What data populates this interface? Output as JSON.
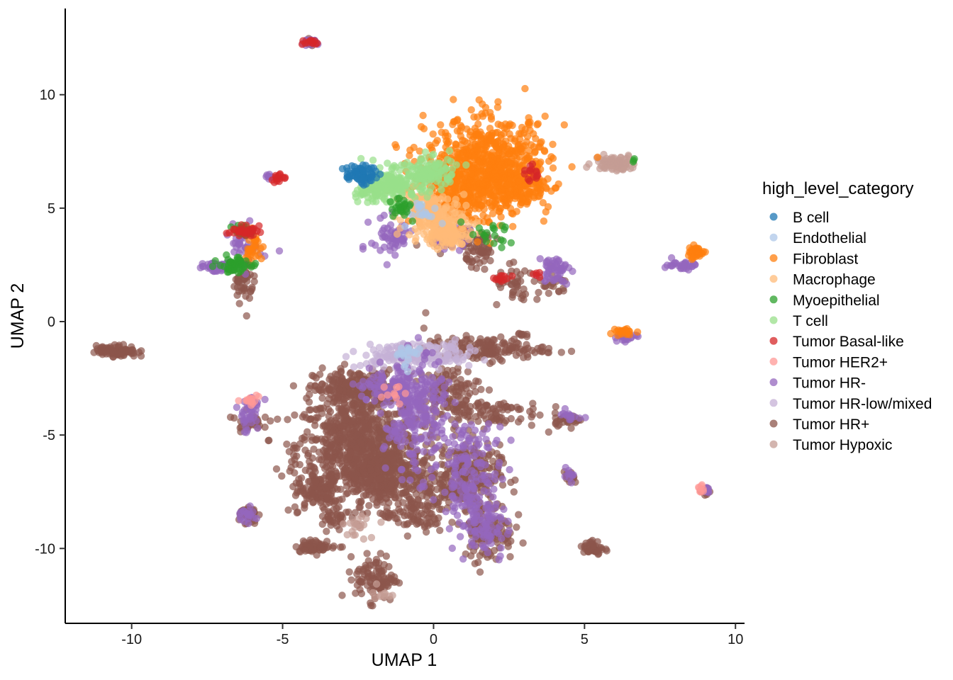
{
  "chart_data": {
    "type": "scatter",
    "xlabel": "UMAP 1",
    "ylabel": "UMAP 2",
    "xlim": [
      -12.2,
      10.3
    ],
    "ylim": [
      -13.3,
      13.8
    ],
    "x_ticks": [
      -10,
      -5,
      0,
      5,
      10
    ],
    "y_ticks": [
      -10,
      -5,
      0,
      5,
      10
    ],
    "x_tick_labels": [
      "-10",
      "-5",
      "0",
      "5",
      "10"
    ],
    "y_tick_labels": [
      "-10",
      "-5",
      "0",
      "5",
      "10"
    ],
    "grid": false,
    "legend": {
      "title": "high_level_category",
      "placement": "right"
    },
    "series": [
      {
        "name": "B cell",
        "color": "#1f77b4",
        "clusters": [
          [
            -2.4,
            6.5,
            0.3,
            0.25,
            60
          ]
        ]
      },
      {
        "name": "Endothelial",
        "color": "#aec7e8",
        "clusters": [
          [
            -0.5,
            4.9,
            0.4,
            0.3,
            20
          ],
          [
            -0.8,
            -1.5,
            0.4,
            0.3,
            20
          ]
        ]
      },
      {
        "name": "Fibroblast",
        "color": "#ff7f0e",
        "clusters": [
          [
            1.8,
            6.9,
            1.2,
            1.2,
            650
          ],
          [
            0.8,
            5.6,
            0.9,
            0.8,
            220
          ],
          [
            2.8,
            6.0,
            0.6,
            0.5,
            150
          ],
          [
            8.7,
            3.05,
            0.2,
            0.15,
            40
          ],
          [
            -6.0,
            3.3,
            0.2,
            0.4,
            30
          ],
          [
            6.4,
            -0.45,
            0.2,
            0.1,
            20
          ]
        ]
      },
      {
        "name": "Macrophage",
        "color": "#ffbb78",
        "clusters": [
          [
            0.1,
            4.4,
            0.6,
            0.5,
            150
          ],
          [
            -0.4,
            5.2,
            0.5,
            0.4,
            80
          ],
          [
            0.5,
            3.7,
            0.4,
            0.3,
            50
          ]
        ]
      },
      {
        "name": "Myoepithelial",
        "color": "#2ca02c",
        "clusters": [
          [
            -6.6,
            2.5,
            0.3,
            0.2,
            60
          ],
          [
            -6.3,
            4.0,
            0.2,
            0.15,
            20
          ],
          [
            -1.1,
            5.0,
            0.3,
            0.3,
            25
          ],
          [
            1.8,
            3.8,
            0.5,
            0.3,
            20
          ],
          [
            6.6,
            7.1,
            0.05,
            0.05,
            3
          ]
        ]
      },
      {
        "name": "T cell",
        "color": "#98df8a",
        "clusters": [
          [
            -1.2,
            6.1,
            0.6,
            0.4,
            180
          ],
          [
            -0.1,
            6.6,
            0.5,
            0.4,
            90
          ],
          [
            -2.0,
            5.7,
            0.4,
            0.3,
            50
          ]
        ]
      },
      {
        "name": "Tumor Basal-like",
        "color": "#d62728",
        "clusters": [
          [
            -6.3,
            4.0,
            0.3,
            0.12,
            35
          ],
          [
            -5.2,
            6.3,
            0.15,
            0.12,
            15
          ],
          [
            3.3,
            6.6,
            0.15,
            0.3,
            15
          ],
          [
            -4.1,
            12.3,
            0.15,
            0.08,
            12
          ],
          [
            2.3,
            1.9,
            0.2,
            0.15,
            12
          ],
          [
            3.5,
            2.1,
            0.1,
            0.1,
            5
          ]
        ]
      },
      {
        "name": "Tumor HER2+",
        "color": "#ff9896",
        "clusters": [
          [
            -6.0,
            -3.4,
            0.2,
            0.15,
            15
          ],
          [
            8.9,
            -7.4,
            0.1,
            0.1,
            8
          ],
          [
            -1.5,
            -3.0,
            0.3,
            0.3,
            10
          ]
        ]
      },
      {
        "name": "Tumor HR-",
        "color": "#9467bd",
        "clusters": [
          [
            -7.1,
            2.4,
            0.4,
            0.12,
            70
          ],
          [
            -6.2,
            3.5,
            0.3,
            0.5,
            40
          ],
          [
            -1.4,
            3.7,
            0.4,
            0.5,
            60
          ],
          [
            -0.6,
            -4.2,
            0.6,
            1.5,
            220
          ],
          [
            1.3,
            -7.0,
            0.6,
            1.5,
            180
          ],
          [
            -1.2,
            -2.8,
            0.8,
            0.5,
            100
          ],
          [
            1.8,
            -9.2,
            0.4,
            0.7,
            50
          ],
          [
            4.0,
            2.3,
            0.3,
            0.35,
            50
          ],
          [
            8.2,
            2.5,
            0.3,
            0.12,
            30
          ],
          [
            6.3,
            -0.7,
            0.25,
            0.15,
            25
          ],
          [
            -6.1,
            -4.0,
            0.25,
            0.5,
            40
          ],
          [
            -6.2,
            -8.5,
            0.2,
            0.2,
            20
          ],
          [
            9.0,
            -7.5,
            0.1,
            0.1,
            10
          ],
          [
            4.5,
            -6.8,
            0.1,
            0.15,
            10
          ],
          [
            4.5,
            -4.2,
            0.3,
            0.15,
            15
          ],
          [
            -4.1,
            12.3,
            0.15,
            0.08,
            15
          ],
          [
            -5.5,
            6.4,
            0.1,
            0.1,
            8
          ],
          [
            0.5,
            3.8,
            0.4,
            0.3,
            40
          ]
        ]
      },
      {
        "name": "Tumor HR-low/mixed",
        "color": "#c5b0d5",
        "clusters": [
          [
            -1.0,
            -1.5,
            0.8,
            0.3,
            120
          ],
          [
            0.3,
            -1.5,
            0.6,
            0.3,
            60
          ]
        ]
      },
      {
        "name": "Tumor HR+",
        "color": "#8c564b",
        "clusters": [
          [
            -2.5,
            -5.5,
            1.2,
            1.3,
            800
          ],
          [
            -2.6,
            -3.0,
            0.8,
            0.5,
            250
          ],
          [
            -1.5,
            -7.0,
            0.9,
            0.8,
            300
          ],
          [
            1.0,
            -6.8,
            0.7,
            0.8,
            250
          ],
          [
            -1.9,
            -11.3,
            0.4,
            0.6,
            100
          ],
          [
            -3.8,
            -7.5,
            0.5,
            0.5,
            100
          ],
          [
            1.8,
            -9.2,
            0.5,
            0.8,
            120
          ],
          [
            0.5,
            -3.0,
            0.6,
            0.6,
            100
          ],
          [
            1.7,
            -1.2,
            1.2,
            0.3,
            150
          ],
          [
            1.5,
            -4.0,
            1.2,
            0.4,
            100
          ],
          [
            -0.6,
            -8.5,
            0.6,
            0.5,
            80
          ],
          [
            -10.5,
            -1.3,
            0.4,
            0.15,
            90
          ],
          [
            -3.9,
            -9.9,
            0.4,
            0.15,
            60
          ],
          [
            -6.3,
            1.8,
            0.2,
            0.6,
            50
          ],
          [
            -6.1,
            -4.4,
            0.25,
            0.25,
            30
          ],
          [
            -6.2,
            -8.5,
            0.2,
            0.25,
            40
          ],
          [
            5.3,
            -10.0,
            0.2,
            0.2,
            40
          ],
          [
            4.4,
            -4.3,
            0.3,
            0.15,
            30
          ],
          [
            9.0,
            -7.5,
            0.1,
            0.1,
            15
          ],
          [
            4.5,
            -6.9,
            0.1,
            0.15,
            15
          ],
          [
            0.9,
            3.6,
            0.6,
            0.3,
            60
          ],
          [
            1.6,
            3.0,
            0.3,
            0.3,
            40
          ],
          [
            2.8,
            1.5,
            0.5,
            0.5,
            40
          ],
          [
            4.0,
            1.6,
            0.3,
            0.3,
            20
          ],
          [
            -0.3,
            0.4,
            0.03,
            0.03,
            1
          ],
          [
            -4.1,
            12.3,
            0.1,
            0.08,
            8
          ],
          [
            -3.3,
            -8.8,
            0.3,
            0.3,
            30
          ],
          [
            2.9,
            -0.6,
            0.1,
            0.1,
            8
          ]
        ]
      },
      {
        "name": "Tumor Hypoxic",
        "color": "#c49c94",
        "clusters": [
          [
            6.0,
            7.0,
            0.4,
            0.2,
            80
          ],
          [
            -2.5,
            -9.0,
            0.3,
            0.3,
            20
          ],
          [
            -1.8,
            -12.0,
            0.2,
            0.2,
            10
          ]
        ]
      }
    ]
  }
}
